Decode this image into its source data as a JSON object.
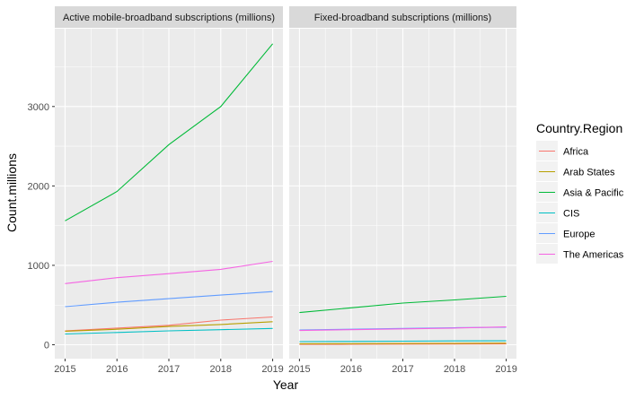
{
  "chart_data": {
    "type": "line",
    "xlabel": "Year",
    "ylabel": "Count.millions",
    "x_ticks": [
      "2015",
      "2016",
      "2017",
      "2018",
      "2019"
    ],
    "y_ticks": [
      "0",
      "1000",
      "2000",
      "3000"
    ],
    "legend": {
      "title": "Country.Region",
      "position": "right"
    },
    "grid": true,
    "xlim": [
      2015,
      2019
    ],
    "ylim": [
      -175,
      3980
    ],
    "colors": {
      "Africa": "#F8766D",
      "Arab States": "#B79F00",
      "Asia & Pacific": "#00BA38",
      "CIS": "#00BFC4",
      "Europe": "#619CFF",
      "The Americas": "#F564E3"
    },
    "facets": [
      {
        "strip_label": "Active mobile-broadband subscriptions (millions)",
        "series": [
          {
            "name": "Africa",
            "x": [
              2015,
              2016,
              2017,
              2018,
              2019
            ],
            "values": [
              175,
              210,
              245,
              310,
              350
            ]
          },
          {
            "name": "Arab States",
            "x": [
              2015,
              2016,
              2017,
              2018,
              2019
            ],
            "values": [
              170,
              195,
              230,
              255,
              290
            ]
          },
          {
            "name": "Asia & Pacific",
            "x": [
              2015,
              2016,
              2017,
              2018,
              2019
            ],
            "values": [
              1560,
              1930,
              2520,
              3000,
              3790
            ]
          },
          {
            "name": "CIS",
            "x": [
              2015,
              2016,
              2017,
              2018,
              2019
            ],
            "values": [
              135,
              155,
              175,
              190,
              205
            ]
          },
          {
            "name": "Europe",
            "x": [
              2015,
              2016,
              2017,
              2018,
              2019
            ],
            "values": [
              480,
              535,
              580,
              625,
              670
            ]
          },
          {
            "name": "The Americas",
            "x": [
              2015,
              2016,
              2017,
              2018,
              2019
            ],
            "values": [
              770,
              845,
              895,
              950,
              1050
            ]
          }
        ]
      },
      {
        "strip_label": "Fixed-broadband subscriptions (millions)",
        "series": [
          {
            "name": "Africa",
            "x": [
              2015,
              2016,
              2017,
              2018,
              2019
            ],
            "values": [
              5,
              6,
              8,
              9,
              10
            ]
          },
          {
            "name": "Arab States",
            "x": [
              2015,
              2016,
              2017,
              2018,
              2019
            ],
            "values": [
              12,
              14,
              16,
              18,
              20
            ]
          },
          {
            "name": "Asia & Pacific",
            "x": [
              2015,
              2016,
              2017,
              2018,
              2019
            ],
            "values": [
              405,
              465,
              525,
              565,
              610
            ]
          },
          {
            "name": "CIS",
            "x": [
              2015,
              2016,
              2017,
              2018,
              2019
            ],
            "values": [
              40,
              42,
              45,
              48,
              50
            ]
          },
          {
            "name": "Europe",
            "x": [
              2015,
              2016,
              2017,
              2018,
              2019
            ],
            "values": [
              185,
              195,
              205,
              215,
              220
            ]
          },
          {
            "name": "The Americas",
            "x": [
              2015,
              2016,
              2017,
              2018,
              2019
            ],
            "values": [
              180,
              190,
              200,
              210,
              225
            ]
          }
        ]
      }
    ]
  }
}
